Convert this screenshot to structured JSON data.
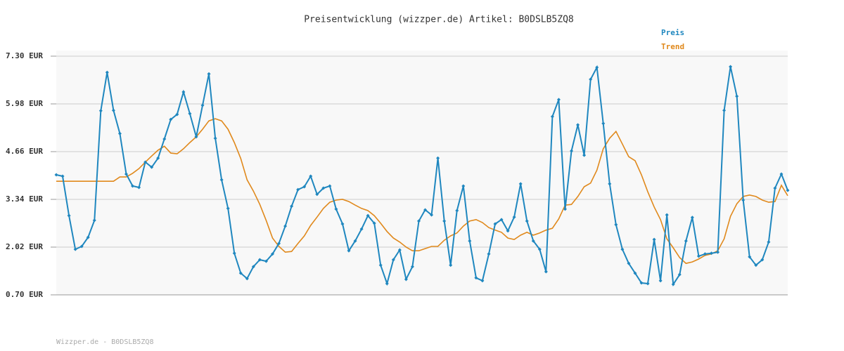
{
  "chart_data": {
    "type": "line",
    "title": "Preisentwicklung (wizzper.de) Artikel: B0DSLB5ZQ8",
    "footer": "Wizzper.de - B0DSLB5ZQ8",
    "ylim": [
      0.7,
      7.3
    ],
    "yticks": [
      {
        "value": 0.7,
        "label": "0.70 EUR"
      },
      {
        "value": 2.02,
        "label": "2.02 EUR"
      },
      {
        "value": 3.34,
        "label": "3.34 EUR"
      },
      {
        "value": 4.66,
        "label": "4.66 EUR"
      },
      {
        "value": 5.98,
        "label": "5.98 EUR"
      },
      {
        "value": 7.3,
        "label": "7.30 EUR"
      }
    ],
    "grid": true,
    "legend": "top-right",
    "series": [
      {
        "name": "Preis",
        "color": "#1f87bf",
        "markers": true,
        "values": [
          4.02,
          3.98,
          2.89,
          1.96,
          2.04,
          2.29,
          2.76,
          5.79,
          6.85,
          5.8,
          5.16,
          4.04,
          3.71,
          3.67,
          4.37,
          4.23,
          4.48,
          5.01,
          5.55,
          5.69,
          6.31,
          5.71,
          5.07,
          5.94,
          6.81,
          5.03,
          3.88,
          3.09,
          1.85,
          1.3,
          1.15,
          1.48,
          1.67,
          1.63,
          1.83,
          2.12,
          2.6,
          3.15,
          3.61,
          3.69,
          3.98,
          3.48,
          3.65,
          3.71,
          3.07,
          2.66,
          1.92,
          2.19,
          2.52,
          2.89,
          2.68,
          1.52,
          1.01,
          1.67,
          1.94,
          1.13,
          1.48,
          2.74,
          3.05,
          2.91,
          4.48,
          2.74,
          1.52,
          3.03,
          3.71,
          2.19,
          1.17,
          1.09,
          1.83,
          2.66,
          2.78,
          2.47,
          2.85,
          3.77,
          2.74,
          2.19,
          1.96,
          1.34,
          5.63,
          6.1,
          3.07,
          4.68,
          5.4,
          4.56,
          6.66,
          6.99,
          5.44,
          3.77,
          2.64,
          1.96,
          1.57,
          1.3,
          1.03,
          1.01,
          2.23,
          1.09,
          2.91,
          0.99,
          1.26,
          2.19,
          2.84,
          1.77,
          1.83,
          1.85,
          1.88,
          5.8,
          7.01,
          6.19,
          3.32,
          1.75,
          1.52,
          1.67,
          2.16,
          3.65,
          4.04,
          3.59
        ]
      },
      {
        "name": "Trend",
        "color": "#e0891c",
        "markers": false,
        "values": [
          3.84,
          3.84,
          3.84,
          3.84,
          3.84,
          3.84,
          3.84,
          3.84,
          3.84,
          3.84,
          3.96,
          3.96,
          4.06,
          4.19,
          4.37,
          4.54,
          4.7,
          4.81,
          4.62,
          4.6,
          4.74,
          4.91,
          5.07,
          5.28,
          5.51,
          5.57,
          5.51,
          5.28,
          4.91,
          4.47,
          3.88,
          3.57,
          3.2,
          2.76,
          2.27,
          2.04,
          1.88,
          1.9,
          2.12,
          2.33,
          2.62,
          2.85,
          3.09,
          3.26,
          3.32,
          3.34,
          3.28,
          3.18,
          3.09,
          3.03,
          2.89,
          2.68,
          2.45,
          2.27,
          2.16,
          2.02,
          1.92,
          1.92,
          1.98,
          2.04,
          2.04,
          2.21,
          2.33,
          2.41,
          2.6,
          2.74,
          2.78,
          2.7,
          2.56,
          2.49,
          2.43,
          2.27,
          2.23,
          2.35,
          2.43,
          2.35,
          2.41,
          2.49,
          2.54,
          2.8,
          3.18,
          3.2,
          3.42,
          3.69,
          3.79,
          4.15,
          4.74,
          5.03,
          5.22,
          4.87,
          4.52,
          4.41,
          4.02,
          3.55,
          3.13,
          2.78,
          2.25,
          2.0,
          1.73,
          1.57,
          1.61,
          1.69,
          1.79,
          1.83,
          1.92,
          2.25,
          2.87,
          3.22,
          3.42,
          3.46,
          3.42,
          3.32,
          3.26,
          3.28,
          3.73,
          3.44
        ]
      }
    ]
  }
}
